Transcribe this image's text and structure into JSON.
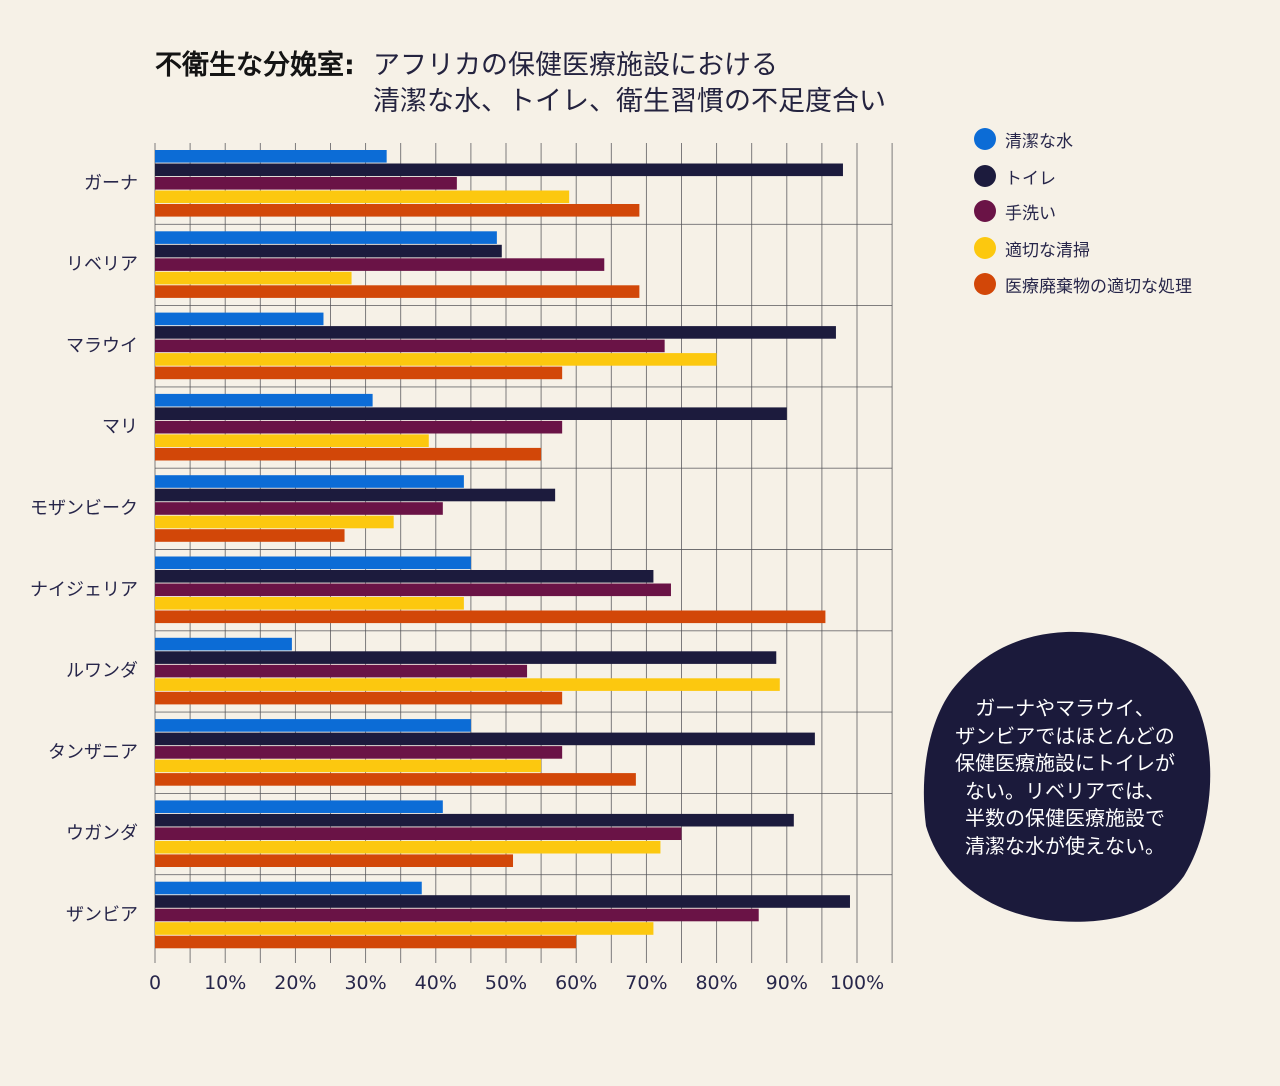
{
  "colors": {
    "background": "#f6f1e7",
    "label_text": "#27264a",
    "grid": "#4d4d52",
    "annotation_fill": "#1b1a3b",
    "annotation_text": "#ffffff"
  },
  "chart_data": {
    "type": "bar",
    "orientation": "horizontal",
    "title": [
      "不衛生な分娩室:",
      "アフリカの保健医療施設における",
      "清潔な水、トイレ、衛生習慣の不足度合い"
    ],
    "xlim": [
      0,
      105
    ],
    "x_ticks": [
      0,
      10,
      20,
      30,
      40,
      50,
      60,
      70,
      80,
      90,
      100
    ],
    "x_tick_labels": [
      "0",
      "10%",
      "20%",
      "30%",
      "40%",
      "50%",
      "60%",
      "70%",
      "80%",
      "90%",
      "100%"
    ],
    "grid": true,
    "legend_position": "top-right",
    "categories": [
      "ガーナ",
      "リベリア",
      "マラウイ",
      "マリ",
      "モザンビーク",
      "ナイジェリア",
      "ルワンダ",
      "タンザニア",
      "ウガンダ",
      "ザンビア"
    ],
    "series": [
      {
        "name": "清潔な水",
        "color": "#0c6cd6",
        "values": [
          33,
          48.7,
          24,
          31,
          44,
          45,
          19.5,
          45,
          41,
          38
        ]
      },
      {
        "name": "トイレ",
        "color": "#1c1b3d",
        "values": [
          98,
          49.4,
          97,
          90,
          57,
          71,
          88.5,
          94,
          91,
          99
        ]
      },
      {
        "name": "手洗い",
        "color": "#6a1346",
        "values": [
          43,
          64,
          72.6,
          58,
          41,
          73.5,
          53,
          58,
          75,
          86
        ]
      },
      {
        "name": "適切な清掃",
        "color": "#fcc80f",
        "values": [
          59,
          28,
          80,
          39,
          34,
          44,
          89,
          55,
          72,
          71
        ]
      },
      {
        "name": "医療廃棄物の適切な処理",
        "color": "#d24708",
        "values": [
          69,
          69,
          58,
          55,
          27,
          95.5,
          58,
          68.5,
          51,
          60
        ]
      }
    ]
  },
  "annotation": {
    "lines": [
      "ガーナやマラウイ、",
      "ザンビアではほとんどの",
      "保健医療施設にトイレが",
      "ない。リベリアでは、",
      "半数の保健医療施設で",
      "清潔な水が使えない。"
    ]
  }
}
